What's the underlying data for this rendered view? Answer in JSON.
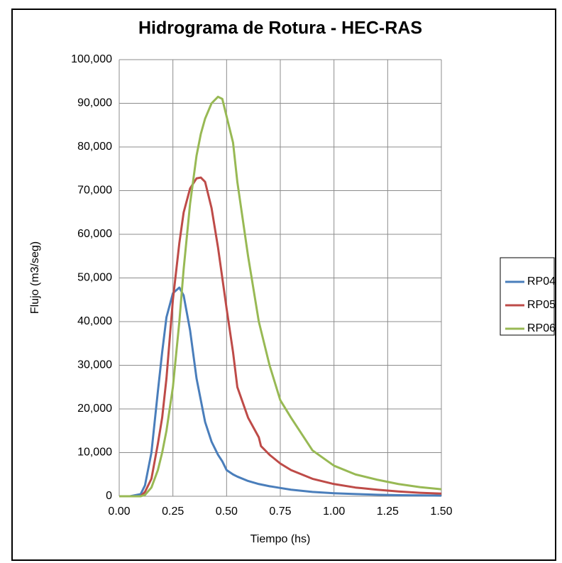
{
  "chart_data": {
    "type": "line",
    "title": "Hidrograma de Rotura - HEC-RAS",
    "x_label": "Tiempo (hs)",
    "y_label": "Flujo (m3/seg)",
    "x": [
      0,
      0.05,
      0.1,
      0.12,
      0.15,
      0.18,
      0.2,
      0.22,
      0.25,
      0.28,
      0.3,
      0.33,
      0.36,
      0.38,
      0.4,
      0.43,
      0.46,
      0.48,
      0.5,
      0.53,
      0.55,
      0.6,
      0.65,
      0.66,
      0.7,
      0.75,
      0.8,
      0.9,
      1.0,
      1.1,
      1.2,
      1.3,
      1.4,
      1.5
    ],
    "series": [
      {
        "name": "RP04",
        "color": "#4a7ebb",
        "values": [
          0,
          0,
          500,
          2500,
          10000,
          24000,
          33000,
          41000,
          46500,
          47800,
          46000,
          38000,
          27000,
          22000,
          17000,
          12500,
          9500,
          8000,
          6000,
          5000,
          4500,
          3500,
          2800,
          2700,
          2300,
          1900,
          1500,
          1000,
          700,
          500,
          350,
          250,
          200,
          150
        ]
      },
      {
        "name": "RP05",
        "color": "#be4b48",
        "values": [
          0,
          0,
          0,
          1000,
          4000,
          12000,
          18000,
          27000,
          45000,
          58000,
          65000,
          70500,
          72800,
          73000,
          72000,
          66000,
          57000,
          50000,
          43000,
          33000,
          25000,
          18000,
          13500,
          11500,
          9500,
          7500,
          6000,
          4000,
          2800,
          2000,
          1500,
          1100,
          800,
          600
        ]
      },
      {
        "name": "RP06",
        "color": "#98b954",
        "values": [
          0,
          0,
          0,
          300,
          2000,
          6000,
          10000,
          15000,
          25000,
          40000,
          52000,
          67000,
          78000,
          83000,
          86500,
          90000,
          91500,
          91000,
          87000,
          81000,
          72000,
          55000,
          40000,
          38000,
          30000,
          22000,
          18000,
          10500,
          7000,
          5000,
          3800,
          2800,
          2100,
          1600
        ]
      }
    ],
    "xlim": [
      0,
      1.5
    ],
    "xticks": [
      {
        "value": 0,
        "label": "0.00"
      },
      {
        "value": 0.25,
        "label": "0.25"
      },
      {
        "value": 0.5,
        "label": "0.50"
      },
      {
        "value": 0.75,
        "label": "0.75"
      },
      {
        "value": 1.0,
        "label": "1.00"
      },
      {
        "value": 1.25,
        "label": "1.25"
      },
      {
        "value": 1.5,
        "label": "1.50"
      }
    ],
    "ylim": [
      0,
      100000
    ],
    "yticks": [
      0,
      {
        "value": 10000,
        "label": "10,000"
      },
      {
        "value": 20000,
        "label": "20,000"
      },
      {
        "value": 30000,
        "label": "30,000"
      },
      {
        "value": 40000,
        "label": "40,000"
      },
      {
        "value": 50000,
        "label": "50,000"
      },
      {
        "value": 60000,
        "label": "60,000"
      },
      {
        "value": 70000,
        "label": "70,000"
      },
      {
        "value": 80000,
        "label": "80,000"
      },
      {
        "value": 90000,
        "label": "90,000"
      },
      {
        "value": 100000,
        "label": "100,000"
      }
    ],
    "grid": true,
    "legend": "right"
  }
}
